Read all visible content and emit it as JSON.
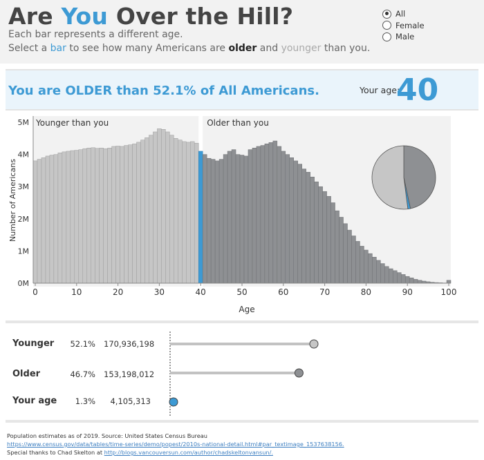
{
  "header": {
    "title_pre": "Are ",
    "title_accent": "You",
    "title_post": " Over the Hill?",
    "subtitle_line1": "Each bar represents a different age.",
    "sub2_a": "Select a ",
    "sub2_bar": "bar",
    "sub2_b": " to see how many Americans are ",
    "sub2_older": "older",
    "sub2_c": " and ",
    "sub2_younger": "younger",
    "sub2_d": " than you."
  },
  "filter": {
    "options": [
      "All",
      "Female",
      "Male"
    ],
    "selected": "All"
  },
  "banner": {
    "text": "You are OLDER than 52.1% of All Americans.",
    "age_label": "Your age:",
    "age_value": "40"
  },
  "colors": {
    "younger": "#c6c6c6",
    "older": "#8e9093",
    "selected": "#3d9ad4",
    "accent": "#3d9ad4"
  },
  "chart_data": [
    {
      "type": "bar",
      "xlabel": "Age",
      "ylabel": "Number of Americans",
      "x_ticks": [
        0,
        10,
        20,
        30,
        40,
        50,
        60,
        70,
        80,
        90,
        100
      ],
      "y_ticks": [
        "0M",
        "1M",
        "2M",
        "3M",
        "4M",
        "5M"
      ],
      "ylim": [
        0,
        5000000
      ],
      "selected_age": 40,
      "region_labels": {
        "younger": "Younger than you",
        "older": "Older than you"
      },
      "x": [
        0,
        1,
        2,
        3,
        4,
        5,
        6,
        7,
        8,
        9,
        10,
        11,
        12,
        13,
        14,
        15,
        16,
        17,
        18,
        19,
        20,
        21,
        22,
        23,
        24,
        25,
        26,
        27,
        28,
        29,
        30,
        31,
        32,
        33,
        34,
        35,
        36,
        37,
        38,
        39,
        40,
        41,
        42,
        43,
        44,
        45,
        46,
        47,
        48,
        49,
        50,
        51,
        52,
        53,
        54,
        55,
        56,
        57,
        58,
        59,
        60,
        61,
        62,
        63,
        64,
        65,
        66,
        67,
        68,
        69,
        70,
        71,
        72,
        73,
        74,
        75,
        76,
        77,
        78,
        79,
        80,
        81,
        82,
        83,
        84,
        85,
        86,
        87,
        88,
        89,
        90,
        91,
        92,
        93,
        94,
        95,
        96,
        97,
        98,
        99,
        100
      ],
      "values": [
        3800000,
        3850000,
        3900000,
        3950000,
        3980000,
        4000000,
        4050000,
        4080000,
        4100000,
        4120000,
        4130000,
        4150000,
        4180000,
        4200000,
        4210000,
        4190000,
        4200000,
        4180000,
        4200000,
        4250000,
        4260000,
        4250000,
        4280000,
        4300000,
        4330000,
        4380000,
        4450000,
        4520000,
        4600000,
        4700000,
        4800000,
        4780000,
        4700000,
        4600000,
        4500000,
        4450000,
        4400000,
        4380000,
        4400000,
        4350000,
        4100000,
        4000000,
        3880000,
        3850000,
        3800000,
        3850000,
        4000000,
        4100000,
        4150000,
        4000000,
        3980000,
        3950000,
        4150000,
        4200000,
        4250000,
        4280000,
        4330000,
        4370000,
        4420000,
        4250000,
        4100000,
        4000000,
        3900000,
        3800000,
        3700000,
        3550000,
        3450000,
        3300000,
        3150000,
        3000000,
        2850000,
        2700000,
        2500000,
        2250000,
        2050000,
        1850000,
        1650000,
        1470000,
        1300000,
        1150000,
        1030000,
        920000,
        810000,
        710000,
        610000,
        520000,
        450000,
        390000,
        330000,
        270000,
        210000,
        165000,
        120000,
        90000,
        65000,
        45000,
        30000,
        20000,
        13000,
        8000,
        90000
      ]
    },
    {
      "type": "pie",
      "labels": [
        "Younger",
        "Older",
        "Your age"
      ],
      "values": [
        52.1,
        46.7,
        1.3
      ]
    }
  ],
  "comparison": {
    "rows": [
      {
        "name": "Younger",
        "pct": "52.1%",
        "count": "170,936,198",
        "value": 170936198,
        "kind": "younger"
      },
      {
        "name": "Older",
        "pct": "46.7%",
        "count": "153,198,012",
        "value": 153198012,
        "kind": "older"
      },
      {
        "name": "Your age",
        "pct": "1.3%",
        "count": "4,105,313",
        "value": 4105313,
        "kind": "selected"
      }
    ]
  },
  "footer": {
    "line1": "Population estimates as of 2019. Source: United States Census Bureau",
    "link1": "https://www.census.gov/data/tables/time-series/demo/popest/2010s-national-detail.html#par_textimage_1537638156.",
    "line3_pre": "Special thanks to Chad Skelton at ",
    "link2": "http://blogs.vancouversun.com/author/chadskeltonvansun/."
  }
}
